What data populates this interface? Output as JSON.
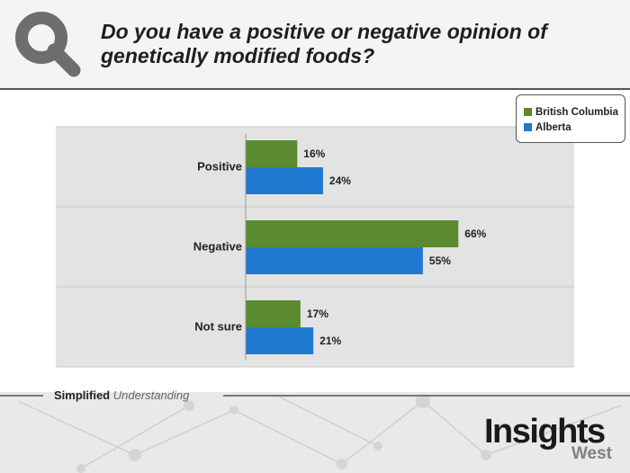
{
  "header": {
    "title": "Do you have a positive or negative opinion of genetically modified foods?"
  },
  "footer": {
    "tagline_bold": "Simplified",
    "tagline_italic": "Understanding",
    "brand_main": "Insights",
    "brand_sub": "West"
  },
  "colors": {
    "british_columbia": "#5a8a2e",
    "alberta": "#1e7ad1",
    "band": "#e3e3e3",
    "logo": "#6e6e6e"
  },
  "chart_data": {
    "type": "bar",
    "orientation": "horizontal",
    "categories": [
      "Positive",
      "Negative",
      "Not sure"
    ],
    "series": [
      {
        "name": "British Columbia",
        "values": [
          16,
          66,
          17
        ],
        "labels": [
          "16%",
          "66%",
          "17%"
        ]
      },
      {
        "name": "Alberta",
        "values": [
          24,
          55,
          21
        ],
        "labels": [
          "24%",
          "55%",
          "21%"
        ]
      }
    ],
    "xlim": [
      0,
      100
    ],
    "legend": "top-right",
    "grid": false
  }
}
